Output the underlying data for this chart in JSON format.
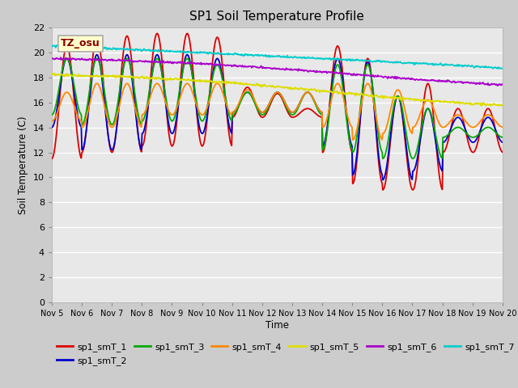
{
  "title": "SP1 Soil Temperature Profile",
  "xlabel": "Time",
  "ylabel": "Soil Temperature (C)",
  "ylim": [
    0,
    22
  ],
  "yticks": [
    0,
    2,
    4,
    6,
    8,
    10,
    12,
    14,
    16,
    18,
    20,
    22
  ],
  "xtick_labels": [
    "Nov 5",
    "Nov 6",
    "Nov 7",
    "Nov 8",
    "Nov 9",
    "Nov 10",
    "Nov 11",
    "Nov 12",
    "Nov 13",
    "Nov 14",
    "Nov 15",
    "Nov 16",
    "Nov 17",
    "Nov 18",
    "Nov 19",
    "Nov 20"
  ],
  "annotation_text": "TZ_osu",
  "annotation_color": "#880000",
  "annotation_bg": "#ffffcc",
  "annotation_border": "#aaaaaa",
  "series_colors": {
    "sp1_smT_1": "#dd0000",
    "sp1_smT_2": "#0000cc",
    "sp1_smT_3": "#00aa00",
    "sp1_smT_4": "#ff8800",
    "sp1_smT_5": "#dddd00",
    "sp1_smT_6": "#aa00cc",
    "sp1_smT_7": "#00cccc"
  },
  "fig_bg": "#cccccc",
  "plot_bg": "#e8e8e8",
  "grid_color": "#ffffff"
}
